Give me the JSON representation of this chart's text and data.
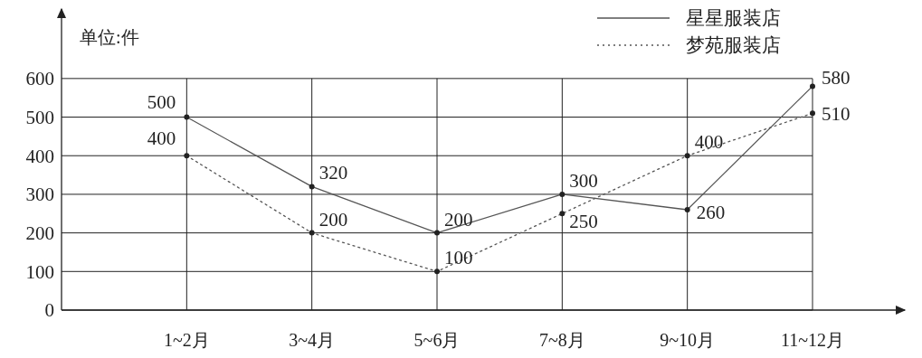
{
  "chart_data": {
    "type": "line",
    "ylabel": "单位:件",
    "categories": [
      "1~2月",
      "3~4月",
      "5~6月",
      "7~8月",
      "9~10月",
      "11~12月"
    ],
    "series": [
      {
        "name": "星星服装店",
        "color": "#555555",
        "line_style": "solid",
        "values": [
          500,
          320,
          200,
          300,
          260,
          580
        ]
      },
      {
        "name": "梦苑服装店",
        "color": "#555555",
        "line_style": "dotted",
        "values": [
          400,
          200,
          100,
          250,
          400,
          510
        ]
      }
    ],
    "ylim": [
      0,
      780
    ],
    "yticks": [
      0,
      100,
      200,
      300,
      400,
      500,
      600
    ],
    "grid": true,
    "legend": "top right",
    "marker": "circle",
    "data_labels": true
  }
}
